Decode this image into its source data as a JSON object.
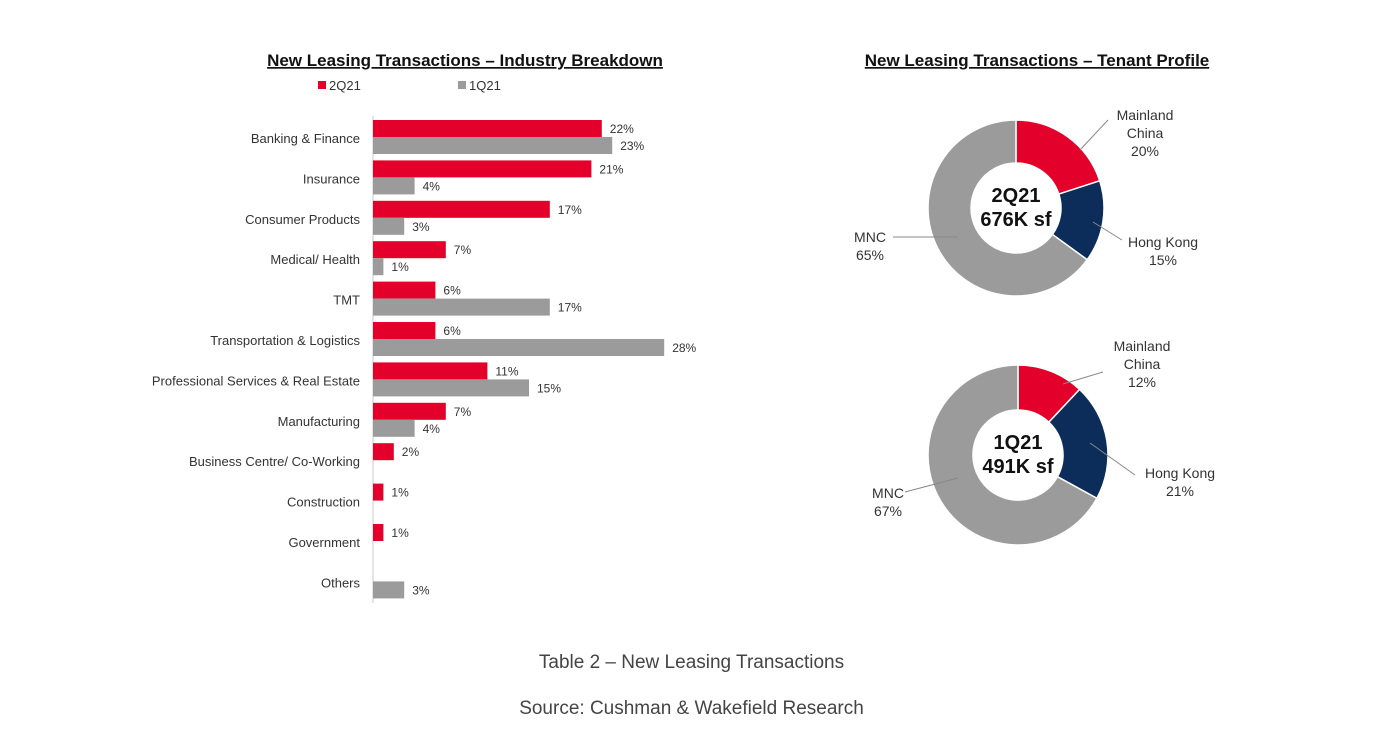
{
  "chart_data": [
    {
      "type": "bar",
      "orientation": "horizontal",
      "title": "New Leasing Transactions – Industry Breakdown",
      "legend_position": "top",
      "categories": [
        "Banking & Finance",
        "Insurance",
        "Consumer Products",
        "Medical/ Health",
        "TMT",
        "Transportation & Logistics",
        "Professional Services & Real Estate",
        "Manufacturing",
        "Business Centre/ Co-Working",
        "Construction",
        "Government",
        "Others"
      ],
      "series": [
        {
          "name": "2Q21",
          "color": "#e3002b",
          "values": [
            22,
            21,
            17,
            7,
            6,
            6,
            11,
            7,
            2,
            1,
            1,
            0
          ]
        },
        {
          "name": "1Q21",
          "color": "#9b9b9b",
          "values": [
            23,
            4,
            3,
            1,
            17,
            28,
            15,
            4,
            0,
            0,
            0,
            3
          ]
        }
      ],
      "value_suffix": "%",
      "xlim": [
        0,
        30
      ],
      "grid": false
    },
    {
      "type": "pie",
      "variant": "donut",
      "title": "New Leasing Transactions – Tenant Profile",
      "center_label": [
        "2Q21",
        "676K sf"
      ],
      "slices": [
        {
          "label": "Mainland China",
          "value": 20,
          "color": "#e3002b"
        },
        {
          "label": "Hong Kong",
          "value": 15,
          "color": "#0c2d5a"
        },
        {
          "label": "MNC",
          "value": 65,
          "color": "#9b9b9b"
        }
      ]
    },
    {
      "type": "pie",
      "variant": "donut",
      "title": "",
      "center_label": [
        "1Q21",
        "491K sf"
      ],
      "slices": [
        {
          "label": "Mainland China",
          "value": 12,
          "color": "#e3002b"
        },
        {
          "label": "Hong Kong",
          "value": 21,
          "color": "#0c2d5a"
        },
        {
          "label": "MNC",
          "value": 67,
          "color": "#9b9b9b"
        }
      ]
    }
  ],
  "captions": {
    "table_label": "Table 2 – New Leasing Transactions",
    "source": "Source: Cushman & Wakefield Research"
  }
}
